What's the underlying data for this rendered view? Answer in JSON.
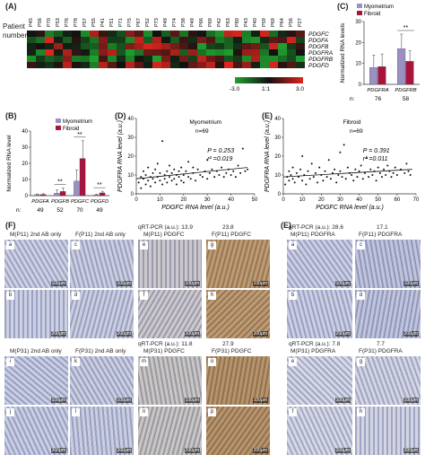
{
  "panels": {
    "A": "(A)",
    "B": "(B)",
    "C": "(C)",
    "D": "(D)",
    "E": "(E)",
    "F": "(F)"
  },
  "heatmap": {
    "patient_label_1": "Patient",
    "patient_label_2": "number",
    "patients": [
      "P45",
      "P56",
      "P70",
      "P53",
      "P76",
      "P78",
      "P57",
      "P55",
      "P41",
      "P51",
      "P71",
      "P75",
      "P67",
      "P52",
      "P73",
      "P48",
      "P74",
      "P38",
      "P49",
      "P66",
      "P69",
      "P42",
      "P63",
      "P80",
      "P43",
      "P40",
      "P59",
      "P69",
      "P64",
      "P56",
      "P27"
    ],
    "genes": [
      "PDGFC",
      "PDGFA",
      "PDGFB",
      "PDGFRA",
      "PDGFRB",
      "PDGFD"
    ],
    "scale_min": "-3.0",
    "scale_mid": "1:1",
    "scale_max": "3.0",
    "colors": {
      "red": "#e0261e",
      "green": "#1fa12f",
      "black": "#111111"
    }
  },
  "legend": {
    "myometrium": "Myometrium",
    "fibroid": "Fibroid",
    "myo_color": "#9a90c4",
    "fib_color": "#a8143c"
  },
  "chart_B": {
    "type": "bar",
    "categories": [
      "PDGFA",
      "PDGFB",
      "PDGFC",
      "PDGFD"
    ],
    "n_label": "n:",
    "n_values": [
      "49",
      "52",
      "70",
      "49"
    ],
    "series": [
      {
        "name": "Myometrium",
        "values": [
          0.6,
          1.5,
          9,
          0.5
        ],
        "err": [
          0.4,
          2,
          7,
          0.4
        ]
      },
      {
        "name": "Fibroid",
        "values": [
          0.7,
          2.6,
          23,
          1.7
        ],
        "err": [
          0.5,
          2,
          11,
          1
        ]
      }
    ],
    "signif": [
      "",
      "**",
      "**",
      "**"
    ],
    "ylabel": "Normalized RNA level",
    "yticks": [
      "0",
      "10",
      "20",
      "30",
      "40"
    ],
    "ylim": [
      0,
      40
    ]
  },
  "chart_C": {
    "type": "bar",
    "categories": [
      "PDGFRA",
      "PDGFRB"
    ],
    "n_label": "n:",
    "n_values": [
      "76",
      "58"
    ],
    "series": [
      {
        "name": "Myometrium",
        "values": [
          8,
          17
        ],
        "err": [
          6,
          7
        ]
      },
      {
        "name": "Fibroid",
        "values": [
          8.5,
          11
        ],
        "err": [
          6,
          5
        ]
      }
    ],
    "signif": [
      "",
      "**"
    ],
    "ylabel": "Normalized RNA levels",
    "yticks": [
      "0",
      "10",
      "20",
      "30"
    ],
    "ylim": [
      0,
      30
    ]
  },
  "chart_D": {
    "type": "scatter",
    "title": "Myometrium",
    "n_text": "n=69",
    "xlabel": "PDGFC RNA level (a.u.)",
    "ylabel": "PDGFRA RNA level (a.u.)",
    "xticks": [
      "0",
      "10",
      "20",
      "30",
      "40",
      "50"
    ],
    "yticks": [
      "0",
      "10",
      "20",
      "30",
      "40"
    ],
    "xlim": [
      0,
      50
    ],
    "ylim": [
      0,
      40
    ],
    "p_text": "P = 0.253",
    "r_text": "r² =0.019",
    "trend": [
      [
        0,
        8
      ],
      [
        47,
        14
      ]
    ],
    "points": [
      [
        1,
        6
      ],
      [
        2,
        9
      ],
      [
        2,
        3
      ],
      [
        3,
        12
      ],
      [
        3,
        8
      ],
      [
        4,
        5
      ],
      [
        4,
        10
      ],
      [
        5,
        7
      ],
      [
        5,
        14
      ],
      [
        6,
        9
      ],
      [
        6,
        4
      ],
      [
        7,
        11
      ],
      [
        7,
        8
      ],
      [
        8,
        6
      ],
      [
        8,
        13
      ],
      [
        9,
        9
      ],
      [
        9,
        16
      ],
      [
        10,
        7
      ],
      [
        10,
        11
      ],
      [
        11,
        5
      ],
      [
        11,
        28
      ],
      [
        12,
        10
      ],
      [
        12,
        8
      ],
      [
        13,
        12
      ],
      [
        13,
        6
      ],
      [
        14,
        9
      ],
      [
        14,
        15
      ],
      [
        15,
        7
      ],
      [
        15,
        11
      ],
      [
        16,
        8
      ],
      [
        16,
        13
      ],
      [
        17,
        10
      ],
      [
        17,
        5
      ],
      [
        18,
        12
      ],
      [
        18,
        9
      ],
      [
        19,
        7
      ],
      [
        19,
        14
      ],
      [
        20,
        10
      ],
      [
        20,
        6
      ],
      [
        21,
        12
      ],
      [
        22,
        9
      ],
      [
        22,
        17
      ],
      [
        23,
        8
      ],
      [
        24,
        11
      ],
      [
        24,
        14
      ],
      [
        25,
        7
      ],
      [
        26,
        13
      ],
      [
        27,
        10
      ],
      [
        28,
        9
      ],
      [
        29,
        12
      ],
      [
        30,
        8
      ],
      [
        31,
        11
      ],
      [
        32,
        13
      ],
      [
        33,
        9
      ],
      [
        34,
        12
      ],
      [
        35,
        10
      ],
      [
        36,
        14
      ],
      [
        37,
        9
      ],
      [
        38,
        11
      ],
      [
        39,
        13
      ],
      [
        40,
        10
      ],
      [
        41,
        12
      ],
      [
        42,
        9
      ],
      [
        43,
        15
      ],
      [
        44,
        11
      ],
      [
        45,
        24
      ],
      [
        46,
        12
      ],
      [
        47,
        13
      ],
      [
        30,
        18
      ]
    ]
  },
  "chart_E": {
    "type": "scatter",
    "title": "Fibroid",
    "n_text": "n=69",
    "xlabel": "PDGFC RNA level (a.u.)",
    "ylabel": "PDGFRA RNA level (a.u.)",
    "xticks": [
      "0",
      "10",
      "20",
      "30",
      "40",
      "50",
      "60",
      "70"
    ],
    "yticks": [
      "0",
      "10",
      "20",
      "30",
      "40"
    ],
    "xlim": [
      0,
      70
    ],
    "ylim": [
      0,
      40
    ],
    "p_text": "P = 0.391",
    "r_text": "r² =0.011",
    "trend": [
      [
        0,
        9
      ],
      [
        68,
        13
      ]
    ],
    "points": [
      [
        1,
        5
      ],
      [
        2,
        9
      ],
      [
        3,
        12
      ],
      [
        3,
        7
      ],
      [
        4,
        10
      ],
      [
        5,
        8
      ],
      [
        5,
        14
      ],
      [
        6,
        6
      ],
      [
        7,
        11
      ],
      [
        8,
        9
      ],
      [
        9,
        13
      ],
      [
        10,
        7
      ],
      [
        10,
        20
      ],
      [
        11,
        10
      ],
      [
        12,
        5
      ],
      [
        13,
        12
      ],
      [
        14,
        8
      ],
      [
        15,
        16
      ],
      [
        16,
        9
      ],
      [
        17,
        11
      ],
      [
        18,
        6
      ],
      [
        19,
        14
      ],
      [
        20,
        10
      ],
      [
        21,
        7
      ],
      [
        22,
        12
      ],
      [
        23,
        9
      ],
      [
        24,
        18
      ],
      [
        25,
        8
      ],
      [
        26,
        11
      ],
      [
        27,
        13
      ],
      [
        28,
        6
      ],
      [
        29,
        10
      ],
      [
        30,
        12
      ],
      [
        31,
        9
      ],
      [
        32,
        26
      ],
      [
        33,
        8
      ],
      [
        34,
        14
      ],
      [
        35,
        11
      ],
      [
        36,
        10
      ],
      [
        37,
        7
      ],
      [
        38,
        13
      ],
      [
        39,
        9
      ],
      [
        40,
        12
      ],
      [
        41,
        15
      ],
      [
        42,
        8
      ],
      [
        43,
        11
      ],
      [
        44,
        19
      ],
      [
        45,
        9
      ],
      [
        46,
        13
      ],
      [
        47,
        10
      ],
      [
        48,
        12
      ],
      [
        49,
        7
      ],
      [
        50,
        14
      ],
      [
        51,
        11
      ],
      [
        52,
        9
      ],
      [
        53,
        13
      ],
      [
        54,
        10
      ],
      [
        55,
        15
      ],
      [
        56,
        12
      ],
      [
        57,
        9
      ],
      [
        58,
        11
      ],
      [
        59,
        14
      ],
      [
        60,
        10
      ],
      [
        62,
        13
      ],
      [
        64,
        11
      ],
      [
        65,
        16
      ],
      [
        66,
        12
      ],
      [
        67,
        10
      ],
      [
        30,
        22
      ]
    ]
  },
  "micro": {
    "qrt_label": "qRT-PCR (a.u.):",
    "row1_val_m": "13.9",
    "row1_val_f": "23.8",
    "row1_labels": [
      "M(P11) 2nd AB only",
      "F(P11) 2nd AB only",
      "M(P11) PDGFC",
      "F(P11) PDGFC"
    ],
    "row2_val_m": "11.8",
    "row2_val_f": "27.9",
    "row2_labels": [
      "M(P31) 2nd AB only",
      "F(P31) 2nd AB only",
      "M(P31) PDGFC",
      "F(P31) PDGFC"
    ],
    "e_row1_val_m": "28.6",
    "e_row1_val_f": "17.1",
    "e_row1_labels": [
      "M(P11) PDGFRA",
      "F(P11) PDGFRA"
    ],
    "e_row2_val_m": "7.8",
    "e_row2_val_f": "7.7",
    "e_row2_labels": [
      "M(P31) PDGFRA",
      "F(P31) PDGFRA"
    ],
    "letters_F": [
      "a",
      "c",
      "e",
      "g",
      "b",
      "d",
      "f",
      "h",
      "i",
      "k",
      "m",
      "o",
      "j",
      "l",
      "n",
      "p"
    ],
    "letters_E": [
      "a",
      "c",
      "b",
      "d",
      "e",
      "g",
      "f",
      "h"
    ],
    "scale_100": "100μm",
    "scale_200": "200μm"
  }
}
